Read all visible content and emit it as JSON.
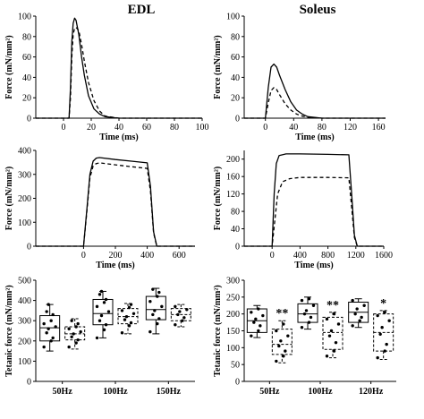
{
  "titles": {
    "left": "EDL",
    "right": "Soleus"
  },
  "chart_data": [
    {
      "id": "edl-twitch",
      "type": "line",
      "xlabel": "Time (ms)",
      "ylabel": "Force (mN/mm²)",
      "xlim": [
        -20,
        100
      ],
      "ylim": [
        0,
        100
      ],
      "xticks": [
        0,
        20,
        40,
        60,
        80,
        100
      ],
      "yticks": [
        0,
        20,
        40,
        60,
        80,
        100
      ],
      "series": [
        {
          "style": "solid",
          "x": [
            -20,
            4,
            5,
            6,
            7,
            8,
            9,
            11,
            13,
            15,
            18,
            22,
            26,
            30,
            40,
            100
          ],
          "y": [
            0,
            0,
            30,
            75,
            93,
            98,
            96,
            82,
            60,
            42,
            22,
            9,
            4,
            1.5,
            0,
            0
          ]
        },
        {
          "style": "dashed",
          "x": [
            -20,
            4,
            5,
            6,
            7,
            8,
            9,
            11,
            13,
            15,
            18,
            22,
            26,
            30,
            40,
            100
          ],
          "y": [
            0,
            0,
            20,
            60,
            82,
            88,
            89,
            86,
            72,
            56,
            35,
            17,
            7,
            2,
            0,
            0
          ]
        }
      ]
    },
    {
      "id": "soleus-twitch",
      "type": "line",
      "xlabel": "Time (ms)",
      "ylabel": "Force (mN/mm²)",
      "xlim": [
        -30,
        170
      ],
      "ylim": [
        0,
        100
      ],
      "xticks": [
        0,
        40,
        80,
        120,
        160
      ],
      "yticks": [
        0,
        20,
        40,
        60,
        80,
        100
      ],
      "series": [
        {
          "style": "solid",
          "x": [
            -30,
            0,
            4,
            8,
            12,
            16,
            20,
            28,
            36,
            44,
            52,
            60,
            80,
            170
          ],
          "y": [
            0,
            0,
            30,
            50,
            53,
            50,
            42,
            28,
            16,
            8,
            4,
            1.5,
            0,
            0
          ]
        },
        {
          "style": "dashed",
          "x": [
            -30,
            0,
            4,
            8,
            12,
            16,
            20,
            28,
            36,
            44,
            52,
            60,
            80,
            170
          ],
          "y": [
            0,
            0,
            15,
            27,
            30,
            28,
            23,
            14,
            8,
            4,
            2,
            1,
            0,
            0
          ]
        }
      ]
    },
    {
      "id": "edl-tetanic",
      "type": "line",
      "xlabel": "Time (ms)",
      "ylabel": "Force (mN/mm²)",
      "xlim": [
        -300,
        700
      ],
      "ylim": [
        0,
        400
      ],
      "xticks": [
        0,
        200,
        400,
        600
      ],
      "yticks": [
        0,
        100,
        200,
        300,
        400
      ],
      "series": [
        {
          "style": "solid",
          "x": [
            -300,
            0,
            20,
            40,
            60,
            80,
            100,
            200,
            300,
            400,
            420,
            440,
            460,
            700
          ],
          "y": [
            0,
            0,
            150,
            300,
            355,
            368,
            370,
            362,
            355,
            348,
            250,
            60,
            0,
            0
          ]
        },
        {
          "style": "dashed",
          "x": [
            -300,
            0,
            20,
            40,
            60,
            80,
            100,
            200,
            300,
            400,
            420,
            440,
            460,
            700
          ],
          "y": [
            0,
            0,
            140,
            285,
            335,
            345,
            348,
            340,
            332,
            325,
            230,
            55,
            0,
            0
          ]
        }
      ]
    },
    {
      "id": "soleus-tetanic",
      "type": "line",
      "xlabel": "Time (ms)",
      "ylabel": "Force (mN/mm²)",
      "xlim": [
        -400,
        1600
      ],
      "ylim": [
        0,
        220
      ],
      "xticks": [
        0,
        400,
        800,
        1200,
        1600
      ],
      "yticks": [
        0,
        40,
        80,
        120,
        160,
        200
      ],
      "series": [
        {
          "style": "solid",
          "x": [
            -400,
            0,
            30,
            60,
            100,
            200,
            400,
            800,
            1100,
            1140,
            1180,
            1220,
            1600
          ],
          "y": [
            0,
            0,
            120,
            190,
            208,
            212,
            212,
            211,
            210,
            120,
            25,
            0,
            0
          ]
        },
        {
          "style": "dashed",
          "x": [
            -400,
            0,
            40,
            80,
            150,
            250,
            400,
            800,
            1100,
            1140,
            1180,
            1220,
            1600
          ],
          "y": [
            0,
            0,
            60,
            120,
            148,
            155,
            158,
            158,
            157,
            90,
            20,
            0,
            0
          ]
        }
      ]
    },
    {
      "id": "edl-box",
      "type": "box",
      "ylabel": "Tetanic force (mN/mm²)",
      "ylim": [
        0,
        500
      ],
      "yticks": [
        0,
        100,
        200,
        300,
        400,
        500
      ],
      "categories": [
        "50Hz",
        "100Hz",
        "150Hz"
      ],
      "boxes": [
        {
          "group": 0,
          "style": "solid",
          "min": 150,
          "q1": 200,
          "median": 265,
          "q3": 325,
          "max": 380,
          "points": [
            170,
            200,
            215,
            240,
            260,
            270,
            285,
            300,
            330,
            345,
            380
          ]
        },
        {
          "group": 0,
          "style": "dashed",
          "min": 160,
          "q1": 205,
          "median": 235,
          "q3": 270,
          "max": 310,
          "points": [
            170,
            190,
            205,
            220,
            235,
            245,
            260,
            270,
            285,
            300
          ]
        },
        {
          "group": 1,
          "style": "solid",
          "min": 215,
          "q1": 280,
          "median": 335,
          "q3": 405,
          "max": 445,
          "points": [
            215,
            255,
            280,
            300,
            325,
            345,
            370,
            390,
            405,
            430,
            445
          ]
        },
        {
          "group": 1,
          "style": "dashed",
          "min": 235,
          "q1": 285,
          "median": 320,
          "q3": 360,
          "max": 385,
          "points": [
            240,
            275,
            290,
            305,
            320,
            335,
            350,
            365,
            380
          ]
        },
        {
          "group": 2,
          "style": "solid",
          "min": 235,
          "q1": 305,
          "median": 355,
          "q3": 420,
          "max": 460,
          "points": [
            245,
            285,
            310,
            330,
            350,
            370,
            395,
            420,
            440,
            455
          ]
        },
        {
          "group": 2,
          "style": "dashed",
          "min": 270,
          "q1": 300,
          "median": 330,
          "q3": 360,
          "max": 380,
          "points": [
            280,
            300,
            315,
            330,
            345,
            355,
            370
          ]
        }
      ]
    },
    {
      "id": "soleus-box",
      "type": "box",
      "ylabel": "Tetanic force (mN/mm²)",
      "ylim": [
        0,
        300
      ],
      "yticks": [
        0,
        50,
        100,
        150,
        200,
        250,
        300
      ],
      "categories": [
        "50Hz",
        "100Hz",
        "120Hz"
      ],
      "boxes": [
        {
          "group": 0,
          "style": "solid",
          "min": 130,
          "q1": 145,
          "median": 180,
          "q3": 215,
          "max": 225,
          "points": [
            135,
            150,
            165,
            175,
            185,
            195,
            205,
            215
          ]
        },
        {
          "group": 0,
          "style": "dashed",
          "min": 55,
          "q1": 80,
          "median": 110,
          "q3": 155,
          "max": 180,
          "points": [
            60,
            75,
            90,
            105,
            120,
            135,
            150,
            170
          ]
        },
        {
          "group": 1,
          "style": "solid",
          "min": 155,
          "q1": 175,
          "median": 200,
          "q3": 230,
          "max": 250,
          "points": [
            160,
            175,
            190,
            200,
            210,
            225,
            240,
            245
          ]
        },
        {
          "group": 1,
          "style": "dashed",
          "min": 70,
          "q1": 95,
          "median": 145,
          "q3": 190,
          "max": 205,
          "points": [
            75,
            90,
            115,
            135,
            150,
            170,
            185,
            200
          ]
        },
        {
          "group": 2,
          "style": "solid",
          "min": 160,
          "q1": 175,
          "median": 205,
          "q3": 235,
          "max": 245,
          "points": [
            165,
            180,
            190,
            200,
            215,
            225,
            240
          ]
        },
        {
          "group": 2,
          "style": "dashed",
          "min": 65,
          "q1": 90,
          "median": 145,
          "q3": 200,
          "max": 210,
          "points": [
            70,
            90,
            110,
            140,
            160,
            180,
            195,
            205
          ]
        }
      ],
      "significance": [
        {
          "group": 0,
          "label": "**"
        },
        {
          "group": 1,
          "label": "**"
        },
        {
          "group": 2,
          "label": "*"
        }
      ]
    }
  ]
}
